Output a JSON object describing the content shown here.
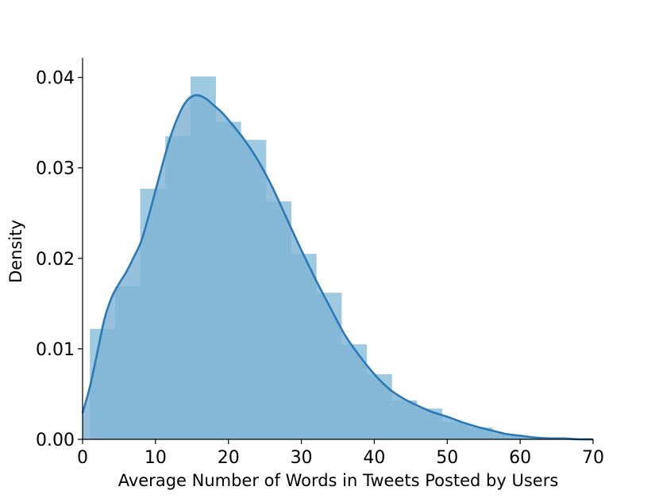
{
  "colors": {
    "bar_fill": "#9ecae1",
    "bar_fill_opacity": 1.0,
    "kde_fill": "#7fb2d3",
    "kde_line": "#2c79b5",
    "axis": "#000000"
  },
  "chart_data": {
    "type": "histogram+kde",
    "xlabel": "Average Number of Words in Tweets Posted by Users",
    "ylabel": "Density",
    "xlim": [
      0,
      70
    ],
    "ylim": [
      0,
      0.042
    ],
    "xticks": [
      0,
      10,
      20,
      30,
      40,
      50,
      60,
      70
    ],
    "xtick_labels": [
      "0",
      "10",
      "20",
      "30",
      "40",
      "50",
      "60",
      "70"
    ],
    "yticks": [
      0,
      0.01,
      0.02,
      0.03,
      0.04
    ],
    "ytick_labels": [
      "0.00",
      "0.01",
      "0.02",
      "0.03",
      "0.04"
    ],
    "grid": false,
    "spines": "left-bottom",
    "bin_width": 3.45,
    "bins": [
      {
        "x0": 1.0,
        "density": 0.0122
      },
      {
        "x0": 4.45,
        "density": 0.0169
      },
      {
        "x0": 7.9,
        "density": 0.0277
      },
      {
        "x0": 11.35,
        "density": 0.0335
      },
      {
        "x0": 14.8,
        "density": 0.0401
      },
      {
        "x0": 18.25,
        "density": 0.0351
      },
      {
        "x0": 21.7,
        "density": 0.0331
      },
      {
        "x0": 25.15,
        "density": 0.0263
      },
      {
        "x0": 28.6,
        "density": 0.0205
      },
      {
        "x0": 32.05,
        "density": 0.0162
      },
      {
        "x0": 35.5,
        "density": 0.0105
      },
      {
        "x0": 38.95,
        "density": 0.0072
      },
      {
        "x0": 42.4,
        "density": 0.0043
      },
      {
        "x0": 45.85,
        "density": 0.0034
      },
      {
        "x0": 49.3,
        "density": 0.0019
      },
      {
        "x0": 52.75,
        "density": 0.0013
      },
      {
        "x0": 56.2,
        "density": 0.0005
      },
      {
        "x0": 59.65,
        "density": 0.0002
      },
      {
        "x0": 63.1,
        "density": 0.0001
      },
      {
        "x0": 66.55,
        "density": 0.0001
      }
    ],
    "kde": {
      "x": [
        0,
        1,
        2,
        3,
        4,
        5,
        6,
        7,
        8,
        9,
        10,
        11,
        12,
        13,
        14,
        15,
        16,
        17,
        18,
        19,
        20,
        22,
        24,
        26,
        28,
        30,
        32,
        34,
        36,
        38,
        40,
        42,
        44,
        46,
        48,
        50,
        52,
        54,
        56,
        58,
        60,
        62,
        64,
        66,
        68,
        70
      ],
      "y": [
        0.0029,
        0.0058,
        0.0095,
        0.0133,
        0.0157,
        0.0172,
        0.0185,
        0.0201,
        0.0218,
        0.0245,
        0.0275,
        0.0305,
        0.0333,
        0.0355,
        0.0371,
        0.0379,
        0.038,
        0.0376,
        0.0369,
        0.0362,
        0.0353,
        0.0333,
        0.0309,
        0.0279,
        0.0244,
        0.0209,
        0.0176,
        0.0145,
        0.0115,
        0.0092,
        0.0072,
        0.0056,
        0.0045,
        0.0037,
        0.003,
        0.0025,
        0.0019,
        0.0014,
        0.001,
        0.0006,
        0.0004,
        0.0002,
        0.0001,
        0.0001,
        0.0,
        0.0
      ]
    }
  }
}
